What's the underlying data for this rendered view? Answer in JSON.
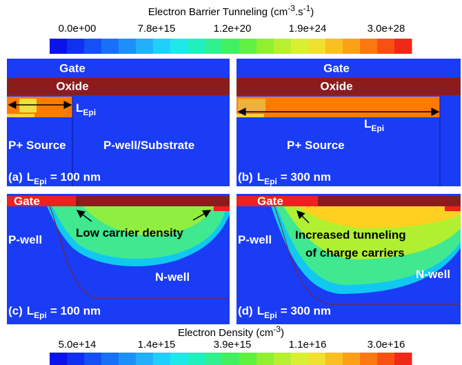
{
  "colorbar_top": {
    "title": [
      "Electron Barrier Tunneling (cm",
      "-3",
      ".s",
      "-1",
      ")"
    ],
    "ticks": [
      "0.0e+00",
      "7.8e+15",
      "1.2e+20",
      "1.9e+24",
      "3.0e+28"
    ]
  },
  "panels": [
    {
      "gate": "Gate",
      "oxide": "Oxide",
      "l_epi": [
        "L",
        "Epi"
      ],
      "left_region": "P+ Source",
      "right_region": "P-well/Substrate",
      "caption": [
        "(a)",
        "L",
        "Epi",
        "= 100 nm"
      ]
    },
    {
      "gate": "Gate",
      "oxide": "Oxide",
      "l_epi": [
        "L",
        "Epi"
      ],
      "left_region": "P+ Source",
      "caption": [
        "(b)",
        "L",
        "Epi",
        "= 300 nm"
      ]
    },
    {
      "gate": "Gate",
      "annotation": [
        "Low carrier density"
      ],
      "left_region": "P-well",
      "right_region": "N-well",
      "caption": [
        "(c)",
        "L",
        "Epi",
        "= 100 nm"
      ]
    },
    {
      "gate": "Gate",
      "annotation": [
        "Increased tunneling",
        "of charge carriers"
      ],
      "left_region": "P-well",
      "right_region": "N-well",
      "caption": [
        "(d)",
        "L",
        "Epi",
        "= 300 nm"
      ]
    }
  ],
  "colorbar_bottom": {
    "title": [
      "Electron Density (cm",
      "-3",
      ")"
    ],
    "ticks": [
      "5.0e+14",
      "1.4e+15",
      "3.9e+15",
      "1.1e+16",
      "3.0e+16"
    ]
  }
}
